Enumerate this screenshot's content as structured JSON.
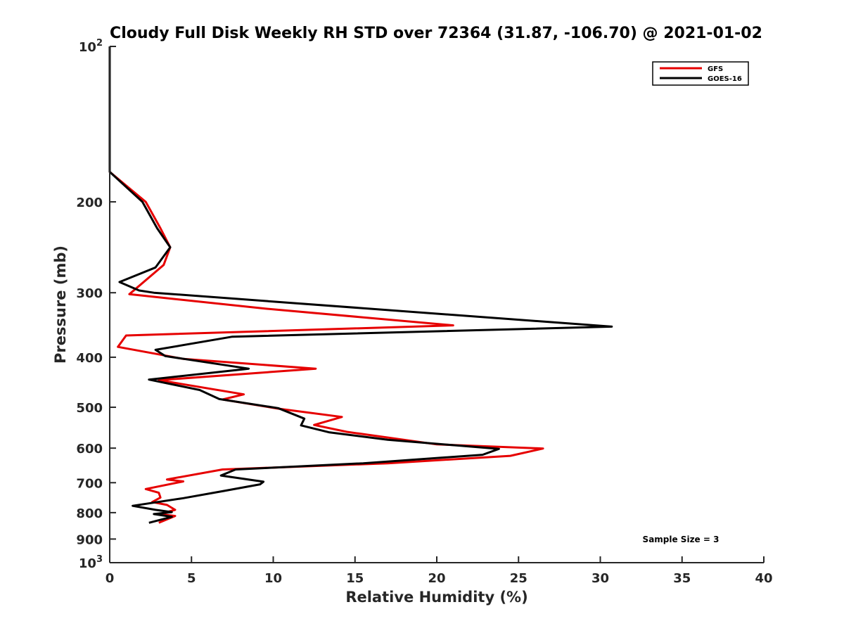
{
  "chart_data": {
    "type": "line",
    "title": "Cloudy Full Disk Weekly RH STD over 72364 (31.87, -106.70) @ 2021-01-02",
    "xlabel": "Relative Humidity (%)",
    "ylabel": "Pressure (mb)",
    "xlim": [
      0,
      40
    ],
    "ylim": [
      100,
      1000
    ],
    "y_scale": "log",
    "y_reversed": true,
    "x_ticks": [
      0,
      5,
      10,
      15,
      20,
      25,
      30,
      35,
      40
    ],
    "y_ticks": [
      {
        "value": 100,
        "base": "10",
        "exp": "2"
      },
      {
        "value": 200,
        "label": "200"
      },
      {
        "value": 300,
        "label": "300"
      },
      {
        "value": 400,
        "label": "400"
      },
      {
        "value": 500,
        "label": "500"
      },
      {
        "value": 600,
        "label": "600"
      },
      {
        "value": 700,
        "label": "700"
      },
      {
        "value": 800,
        "label": "800"
      },
      {
        "value": 900,
        "label": "900"
      },
      {
        "value": 1000,
        "base": "10",
        "exp": "3"
      }
    ],
    "grid": false,
    "legend_position": "top-right",
    "series": [
      {
        "name": "GFS",
        "color": "#e60000",
        "points": [
          [
            0,
            100
          ],
          [
            0,
            175
          ],
          [
            2.2,
            200
          ],
          [
            3.1,
            225
          ],
          [
            3.7,
            245
          ],
          [
            3.3,
            265
          ],
          [
            1.2,
            302
          ],
          [
            9.5,
            322
          ],
          [
            21.0,
            347
          ],
          [
            1.0,
            363
          ],
          [
            0.5,
            382
          ],
          [
            3.2,
            396
          ],
          [
            4.5,
            403
          ],
          [
            12.6,
            421
          ],
          [
            3.0,
            443
          ],
          [
            8.2,
            472
          ],
          [
            6.9,
            483
          ],
          [
            10.3,
            503
          ],
          [
            14.2,
            522
          ],
          [
            12.5,
            541
          ],
          [
            14.5,
            558
          ],
          [
            20.0,
            590
          ],
          [
            26.5,
            601
          ],
          [
            24.5,
            621
          ],
          [
            17.0,
            642
          ],
          [
            6.9,
            660
          ],
          [
            3.5,
            690
          ],
          [
            4.5,
            696
          ],
          [
            2.2,
            720
          ],
          [
            3.0,
            732
          ],
          [
            3.1,
            748
          ],
          [
            2.6,
            763
          ],
          [
            3.5,
            773
          ],
          [
            4.0,
            790
          ],
          [
            3.0,
            805
          ],
          [
            4.0,
            812
          ],
          [
            3.0,
            837
          ]
        ]
      },
      {
        "name": "GOES-16",
        "color": "#000000",
        "points": [
          [
            0,
            100
          ],
          [
            0,
            175
          ],
          [
            2.0,
            200
          ],
          [
            2.9,
            225
          ],
          [
            3.7,
            245
          ],
          [
            2.8,
            268
          ],
          [
            0.6,
            286
          ],
          [
            1.8,
            297
          ],
          [
            2.7,
            300
          ],
          [
            30.7,
            349
          ],
          [
            7.5,
            365
          ],
          [
            2.8,
            387
          ],
          [
            3.4,
            398
          ],
          [
            8.5,
            421
          ],
          [
            2.4,
            442
          ],
          [
            5.5,
            463
          ],
          [
            6.7,
            482
          ],
          [
            10.3,
            502
          ],
          [
            11.9,
            526
          ],
          [
            11.7,
            542
          ],
          [
            13.4,
            559
          ],
          [
            17.0,
            578
          ],
          [
            23.8,
            602
          ],
          [
            22.8,
            618
          ],
          [
            15.5,
            642
          ],
          [
            7.7,
            660
          ],
          [
            6.8,
            678
          ],
          [
            9.4,
            697
          ],
          [
            9.2,
            705
          ],
          [
            6.9,
            727
          ],
          [
            4.5,
            750
          ],
          [
            1.4,
            776
          ],
          [
            2.8,
            790
          ],
          [
            3.8,
            798
          ],
          [
            2.7,
            805
          ],
          [
            3.8,
            815
          ],
          [
            2.4,
            837
          ]
        ]
      }
    ],
    "annotation": "Sample Size = 3"
  }
}
